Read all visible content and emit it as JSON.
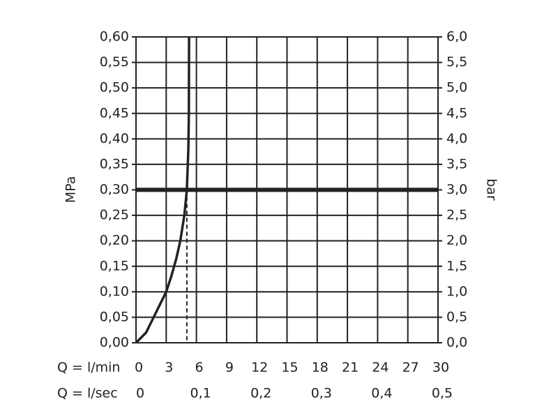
{
  "chart_data": {
    "type": "line",
    "y_axis_label": "MPa",
    "y2_axis_label": "bar",
    "x_axis_label": "Q = l/min",
    "x2_axis_label": "Q = l/sec",
    "x": [
      0,
      1,
      1.5,
      2,
      3,
      3.5,
      4,
      4.4,
      4.8,
      5.05,
      5.2,
      5.25,
      5.27
    ],
    "series": [
      {
        "color": "#222222",
        "values": [
          0,
          0.02,
          0.04,
          0.06,
          0.1,
          0.13,
          0.165,
          0.2,
          0.25,
          0.3,
          0.38,
          0.45,
          0.6
        ]
      }
    ],
    "xlim": [
      0,
      30
    ],
    "xticks": [
      0,
      3,
      6,
      9,
      12,
      15,
      18,
      21,
      24,
      27,
      30
    ],
    "x2lim": [
      0,
      0.5
    ],
    "x2ticks": [
      0,
      {
        "value": 0.1,
        "label": "0,1"
      },
      {
        "value": 0.2,
        "label": "0,2"
      },
      {
        "value": 0.3,
        "label": "0,3"
      },
      {
        "value": 0.4,
        "label": "0,4"
      },
      {
        "value": 0.5,
        "label": "0,5"
      }
    ],
    "ylim": [
      0,
      0.6
    ],
    "yticks": [
      {
        "value": 0,
        "label": "0,00"
      },
      {
        "value": 0.05,
        "label": "0,05"
      },
      {
        "value": 0.1,
        "label": "0,10"
      },
      {
        "value": 0.15,
        "label": "0,15"
      },
      {
        "value": 0.2,
        "label": "0,20"
      },
      {
        "value": 0.25,
        "label": "0,25"
      },
      {
        "value": 0.3,
        "label": "0,30"
      },
      {
        "value": 0.35,
        "label": "0,35"
      },
      {
        "value": 0.4,
        "label": "0,40"
      },
      {
        "value": 0.45,
        "label": "0,45"
      },
      {
        "value": 0.5,
        "label": "0,50"
      },
      {
        "value": 0.55,
        "label": "0,55"
      },
      {
        "value": 0.6,
        "label": "0,60"
      }
    ],
    "y2lim": [
      0,
      6
    ],
    "y2ticks": [
      {
        "value": 0,
        "label": "0,0"
      },
      {
        "value": 0.5,
        "label": "0,5"
      },
      {
        "value": 1,
        "label": "1,0"
      },
      {
        "value": 1.5,
        "label": "1,5"
      },
      {
        "value": 2,
        "label": "2,0"
      },
      {
        "value": 2.5,
        "label": "2,5"
      },
      {
        "value": 3,
        "label": "3,0"
      },
      {
        "value": 3.5,
        "label": "3,5"
      },
      {
        "value": 4,
        "label": "4,0"
      },
      {
        "value": 4.5,
        "label": "4,5"
      },
      {
        "value": 5,
        "label": "5,0"
      },
      {
        "value": 5.5,
        "label": "5,5"
      },
      {
        "value": 6,
        "label": "6,0"
      }
    ],
    "highlight": {
      "y": 0.3,
      "x": 5.05
    },
    "grid": true
  }
}
